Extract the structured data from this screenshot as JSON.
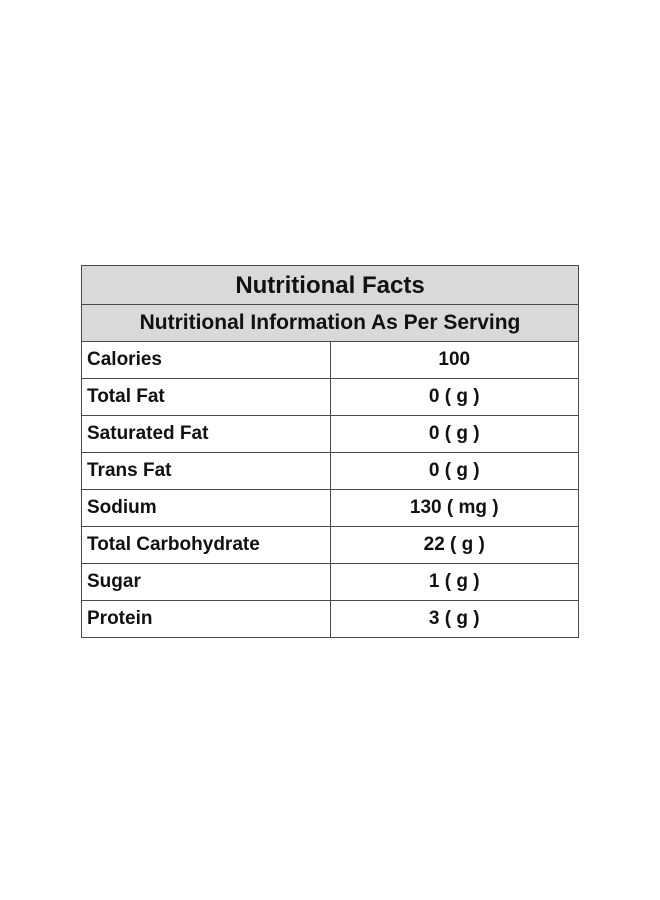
{
  "table": {
    "title": "Nutritional Facts",
    "subtitle": "Nutritional Information As Per Serving",
    "rows": [
      {
        "label": "Calories",
        "value": "100"
      },
      {
        "label": "Total Fat",
        "value": "0 ( g )"
      },
      {
        "label": "Saturated Fat",
        "value": "0 ( g )"
      },
      {
        "label": "Trans Fat",
        "value": "0 ( g )"
      },
      {
        "label": "Sodium",
        "value": "130 ( mg )"
      },
      {
        "label": "Total Carbohydrate",
        "value": "22 ( g )"
      },
      {
        "label": "Sugar",
        "value": "1 ( g )"
      },
      {
        "label": "Protein",
        "value": "3 ( g )"
      }
    ]
  }
}
